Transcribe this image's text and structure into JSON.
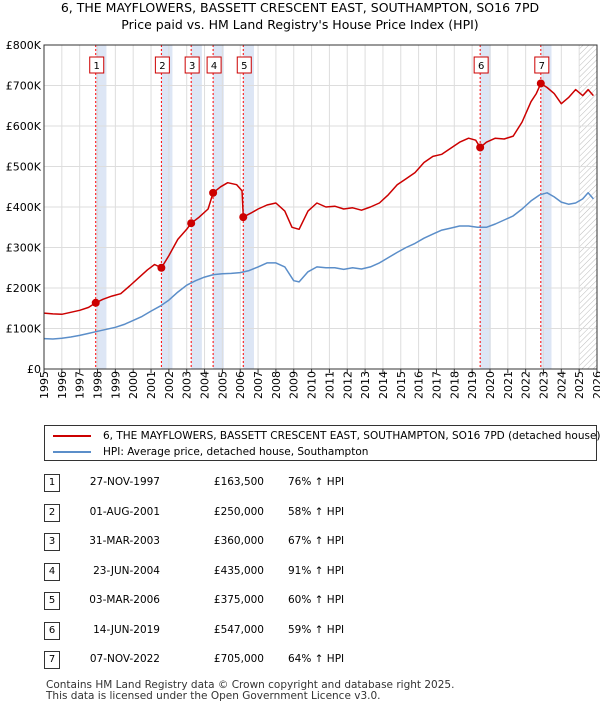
{
  "title_line1": "6, THE MAYFLOWERS, BASSETT CRESCENT EAST, SOUTHAMPTON, SO16 7PD",
  "title_line2": "Price paid vs. HM Land Registry's House Price Index (HPI)",
  "colors": {
    "property": "#cc0000",
    "hpi": "#5b8ec9",
    "marker_line": "#ff0000",
    "shade": "#dde6f5"
  },
  "chart_data": {
    "type": "line",
    "x_range": [
      1995,
      2026
    ],
    "ylim": [
      0,
      800000
    ],
    "y_ticks": [
      {
        "value": 0,
        "label": "£0"
      },
      {
        "value": 100000,
        "label": "£100K"
      },
      {
        "value": 200000,
        "label": "£200K"
      },
      {
        "value": 300000,
        "label": "£300K"
      },
      {
        "value": 400000,
        "label": "£400K"
      },
      {
        "value": 500000,
        "label": "£500K"
      },
      {
        "value": 600000,
        "label": "£600K"
      },
      {
        "value": 700000,
        "label": "£700K"
      },
      {
        "value": 800000,
        "label": "£800K"
      }
    ],
    "x_ticks": [
      "1995",
      "1996",
      "1997",
      "1998",
      "1999",
      "2000",
      "2001",
      "2002",
      "2003",
      "2004",
      "2005",
      "2006",
      "2007",
      "2008",
      "2009",
      "2010",
      "2011",
      "2012",
      "2013",
      "2014",
      "2015",
      "2016",
      "2017",
      "2018",
      "2019",
      "2020",
      "2021",
      "2022",
      "2023",
      "2024",
      "2025",
      "2026"
    ],
    "shaded_ranges": [
      [
        1997.9,
        1998.5
      ],
      [
        2001.58,
        2002.2
      ],
      [
        2003.25,
        2003.85
      ],
      [
        2004.48,
        2005.08
      ],
      [
        2006.17,
        2006.77
      ],
      [
        2019.45,
        2020.05
      ],
      [
        2022.85,
        2023.45
      ]
    ],
    "hatch_from": 2025.0,
    "series": [
      {
        "name": "6, THE MAYFLOWERS, BASSETT CRESCENT EAST, SOUTHAMPTON, SO16 7PD (detached house)",
        "x": [
          1995.0,
          1995.5,
          1996.0,
          1996.5,
          1997.0,
          1997.5,
          1997.9,
          1998.3,
          1998.8,
          1999.3,
          1999.8,
          2000.3,
          2000.8,
          2001.2,
          2001.58,
          2002.0,
          2002.5,
          2003.0,
          2003.25,
          2003.7,
          2004.2,
          2004.48,
          2004.9,
          2005.3,
          2005.8,
          2006.1,
          2006.17,
          2006.6,
          2007.0,
          2007.5,
          2008.0,
          2008.5,
          2008.9,
          2009.3,
          2009.8,
          2010.3,
          2010.8,
          2011.3,
          2011.8,
          2012.3,
          2012.8,
          2013.3,
          2013.8,
          2014.3,
          2014.8,
          2015.3,
          2015.8,
          2016.3,
          2016.8,
          2017.3,
          2017.8,
          2018.3,
          2018.8,
          2019.2,
          2019.45,
          2019.8,
          2020.3,
          2020.8,
          2021.3,
          2021.8,
          2022.3,
          2022.6,
          2022.85,
          2023.2,
          2023.6,
          2024.0,
          2024.4,
          2024.8,
          2025.2,
          2025.5,
          2025.8
        ],
        "values": [
          138000,
          136000,
          135000,
          140000,
          145000,
          152000,
          163500,
          172000,
          180000,
          186000,
          205000,
          225000,
          245000,
          258000,
          250000,
          280000,
          320000,
          345000,
          360000,
          375000,
          395000,
          435000,
          450000,
          460000,
          455000,
          440000,
          375000,
          385000,
          395000,
          405000,
          410000,
          390000,
          350000,
          345000,
          390000,
          410000,
          400000,
          402000,
          395000,
          398000,
          392000,
          400000,
          410000,
          430000,
          455000,
          470000,
          485000,
          510000,
          525000,
          530000,
          545000,
          560000,
          570000,
          565000,
          547000,
          560000,
          570000,
          568000,
          575000,
          610000,
          660000,
          680000,
          705000,
          695000,
          680000,
          655000,
          670000,
          690000,
          675000,
          690000,
          675000
        ]
      },
      {
        "name": "HPI: Average price, detached house, Southampton",
        "x": [
          1995.0,
          1995.5,
          1996.0,
          1996.5,
          1997.0,
          1997.5,
          1998.0,
          1998.5,
          1999.0,
          1999.5,
          2000.0,
          2000.5,
          2001.0,
          2001.5,
          2002.0,
          2002.5,
          2003.0,
          2003.5,
          2004.0,
          2004.5,
          2005.0,
          2005.5,
          2006.0,
          2006.5,
          2007.0,
          2007.5,
          2008.0,
          2008.5,
          2009.0,
          2009.3,
          2009.8,
          2010.3,
          2010.8,
          2011.3,
          2011.8,
          2012.3,
          2012.8,
          2013.3,
          2013.8,
          2014.3,
          2014.8,
          2015.3,
          2015.8,
          2016.3,
          2016.8,
          2017.3,
          2017.8,
          2018.3,
          2018.8,
          2019.3,
          2019.8,
          2020.3,
          2020.8,
          2021.3,
          2021.8,
          2022.3,
          2022.8,
          2023.2,
          2023.6,
          2024.0,
          2024.4,
          2024.8,
          2025.2,
          2025.5,
          2025.8
        ],
        "values": [
          75000,
          74000,
          76000,
          79000,
          83000,
          88000,
          93000,
          98000,
          103000,
          110000,
          120000,
          130000,
          143000,
          155000,
          170000,
          190000,
          207000,
          218000,
          227000,
          233000,
          235000,
          236000,
          238000,
          243000,
          252000,
          262000,
          262000,
          252000,
          218000,
          215000,
          240000,
          252000,
          250000,
          250000,
          246000,
          250000,
          247000,
          252000,
          262000,
          275000,
          288000,
          300000,
          310000,
          323000,
          333000,
          343000,
          348000,
          353000,
          353000,
          350000,
          350000,
          358000,
          368000,
          378000,
          395000,
          415000,
          430000,
          435000,
          425000,
          412000,
          407000,
          410000,
          420000,
          435000,
          420000
        ]
      }
    ],
    "sales": [
      {
        "n": 1,
        "x": 1997.9,
        "value": 163500
      },
      {
        "n": 2,
        "x": 2001.58,
        "value": 250000
      },
      {
        "n": 3,
        "x": 2003.25,
        "value": 360000
      },
      {
        "n": 4,
        "x": 2004.48,
        "value": 435000
      },
      {
        "n": 5,
        "x": 2006.17,
        "value": 375000
      },
      {
        "n": 6,
        "x": 2019.45,
        "value": 547000
      },
      {
        "n": 7,
        "x": 2022.85,
        "value": 705000
      }
    ]
  },
  "legend": {
    "property": "6, THE MAYFLOWERS, BASSETT CRESCENT EAST, SOUTHAMPTON, SO16 7PD (detached house)",
    "hpi": "HPI: Average price, detached house, Southampton"
  },
  "transactions": [
    {
      "n": "1",
      "date": "27-NOV-1997",
      "price": "£163,500",
      "hpi": "76% ↑ HPI"
    },
    {
      "n": "2",
      "date": "01-AUG-2001",
      "price": "£250,000",
      "hpi": "58% ↑ HPI"
    },
    {
      "n": "3",
      "date": "31-MAR-2003",
      "price": "£360,000",
      "hpi": "67% ↑ HPI"
    },
    {
      "n": "4",
      "date": "23-JUN-2004",
      "price": "£435,000",
      "hpi": "91% ↑ HPI"
    },
    {
      "n": "5",
      "date": "03-MAR-2006",
      "price": "£375,000",
      "hpi": "60% ↑ HPI"
    },
    {
      "n": "6",
      "date": "14-JUN-2019",
      "price": "£547,000",
      "hpi": "59% ↑ HPI"
    },
    {
      "n": "7",
      "date": "07-NOV-2022",
      "price": "£705,000",
      "hpi": "64% ↑ HPI"
    }
  ],
  "footer_line1": "Contains HM Land Registry data © Crown copyright and database right 2025.",
  "footer_line2": "This data is licensed under the Open Government Licence v3.0."
}
